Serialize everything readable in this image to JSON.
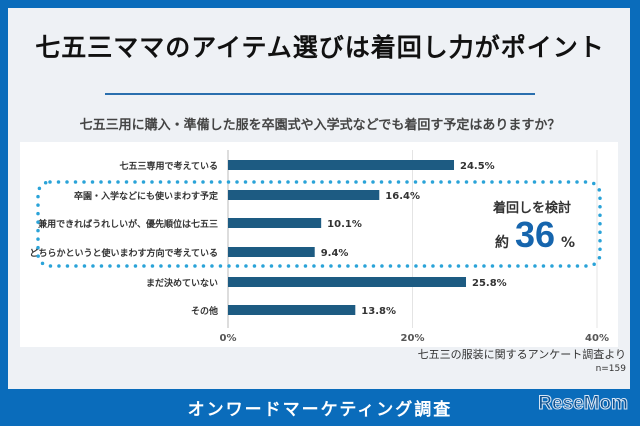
{
  "title": "七五三ママのアイテム選びは着回し力がポイント",
  "question": "七五三用に購入・準備した服を卒園式や入学式などでも着回す予定はありますか？",
  "chart_data": {
    "type": "bar",
    "orientation": "horizontal",
    "categories": [
      "七五三専用で考えている",
      "卒園・入学などにも使いまわす予定",
      "兼用できればうれしいが、優先順位は七五三",
      "どちらかというと使いまわす方向で考えている",
      "まだ決めていない",
      "その他"
    ],
    "values": [
      24.5,
      16.4,
      10.1,
      9.4,
      25.8,
      13.8
    ],
    "data_labels": [
      "24.5%",
      "16.4%",
      "10.1%",
      "9.4%",
      "25.8%",
      "13.8%"
    ],
    "xlim": [
      0,
      40
    ],
    "xticks": [
      "0%",
      "20%",
      "40%"
    ],
    "grid": true,
    "bar_color": "#1d5b82",
    "highlight_color": "#2aa3d8"
  },
  "callout": {
    "label": "着回しを検討",
    "prefix": "約",
    "value": "36",
    "unit": "%"
  },
  "source": "七五三の服装に関するアンケート調査より",
  "sample": "n=159",
  "footer": "オンワードマーケティング調査",
  "logo": "ReseMom"
}
